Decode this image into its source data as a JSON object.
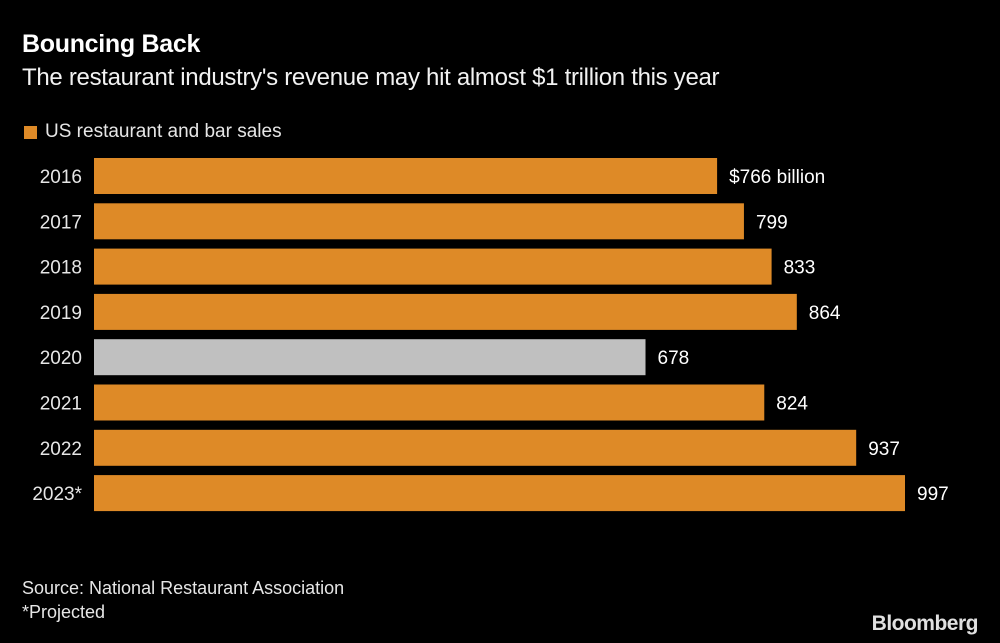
{
  "chart_data": {
    "type": "bar",
    "orientation": "horizontal",
    "title": "Bouncing Back",
    "subtitle": "The restaurant industry's revenue may hit almost $1 trillion this year",
    "legend": [
      {
        "name": "US restaurant and bar sales",
        "color": "#DE8A27"
      }
    ],
    "legend_placement": "top-left",
    "categories": [
      "2016",
      "2017",
      "2018",
      "2019",
      "2020",
      "2021",
      "2022",
      "2023*"
    ],
    "series": [
      {
        "name": "US restaurant and bar sales",
        "values": [
          766,
          799,
          833,
          864,
          678,
          824,
          937,
          997
        ]
      }
    ],
    "data_labels": [
      "$766 billion",
      "799",
      "833",
      "864",
      "678",
      "824",
      "937",
      "997"
    ],
    "highlight": {
      "category": "2020",
      "color": "#C0C0C0"
    },
    "bar_color": "#DE8A27",
    "unit": "billion USD",
    "xlim": [
      0,
      997
    ],
    "grid": false
  },
  "footer": {
    "source": "Source: National Restaurant Association",
    "note": "*Projected",
    "logo": "Bloomberg"
  }
}
